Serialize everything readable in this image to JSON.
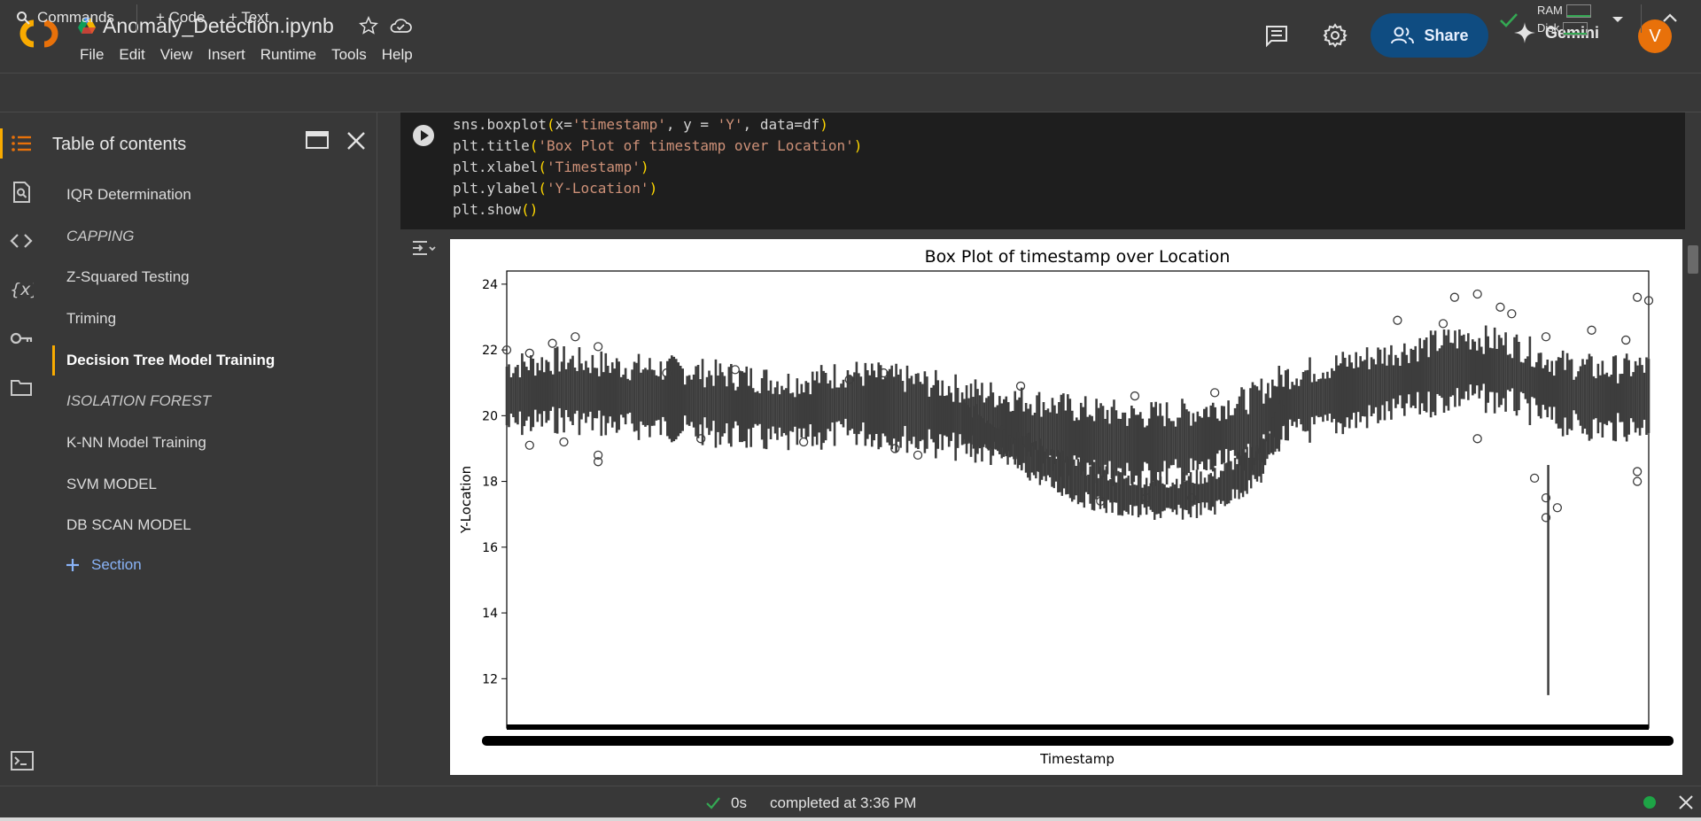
{
  "app": {
    "notebook_title": "Anomaly_Detection.ipynb",
    "menu": [
      "File",
      "Edit",
      "View",
      "Insert",
      "Runtime",
      "Tools",
      "Help"
    ],
    "share_label": "Share",
    "gemini_label": "Gemini",
    "avatar_letter": "V",
    "brand_color": "#f9ab00"
  },
  "toolbar": {
    "commands_label": "Commands",
    "code_label": "+ Code",
    "text_label": "+ Text",
    "ram_label": "RAM",
    "disk_label": "Disk"
  },
  "sidebar": {
    "title": "Table of contents",
    "items": [
      {
        "label": "IQR Determination",
        "style": "normal"
      },
      {
        "label": "CAPPING",
        "style": "italic"
      },
      {
        "label": "Z-Squared Testing",
        "style": "normal"
      },
      {
        "label": "Triming",
        "style": "normal"
      },
      {
        "label": "Decision Tree Model Training",
        "style": "active"
      },
      {
        "label": "ISOLATION FOREST",
        "style": "italic"
      },
      {
        "label": "K-NN Model Training",
        "style": "normal"
      },
      {
        "label": "SVM MODEL",
        "style": "normal"
      },
      {
        "label": "DB SCAN MODEL",
        "style": "normal"
      }
    ],
    "add_section_label": "Section"
  },
  "cell": {
    "code_lines": [
      [
        "sns.boxplot",
        "(",
        "x=",
        "'timestamp'",
        ", y = ",
        "'Y'",
        ", data=df",
        ")"
      ],
      [
        "plt.title",
        "(",
        "",
        "'Box Plot of timestamp over Location'",
        "",
        "",
        "",
        ")"
      ],
      [
        "plt.xlabel",
        "(",
        "",
        "'Timestamp'",
        "",
        "",
        "",
        ")"
      ],
      [
        "plt.ylabel",
        "(",
        "",
        "'Y-Location'",
        "",
        "",
        "",
        ")"
      ],
      [
        "plt.show",
        "(",
        "",
        "",
        "",
        "",
        "",
        ")"
      ]
    ]
  },
  "chart_data": {
    "type": "box",
    "title": "Box Plot of timestamp over Location",
    "xlabel": "Timestamp",
    "ylabel": "Y-Location",
    "ylim": [
      10.5,
      24.4
    ],
    "yticks": [
      12,
      14,
      16,
      18,
      20,
      22,
      24
    ],
    "series": [
      {
        "trend_points": [
          [
            0.0,
            20.6
          ],
          [
            0.05,
            20.8
          ],
          [
            0.1,
            20.6
          ],
          [
            0.15,
            20.5
          ],
          [
            0.2,
            20.3
          ],
          [
            0.25,
            20.1
          ],
          [
            0.3,
            20.4
          ],
          [
            0.35,
            20.2
          ],
          [
            0.4,
            19.9
          ],
          [
            0.45,
            19.6
          ],
          [
            0.5,
            19.3
          ],
          [
            0.55,
            19.1
          ],
          [
            0.6,
            19.2
          ],
          [
            0.65,
            19.6
          ],
          [
            0.68,
            20.3
          ],
          [
            0.72,
            20.6
          ],
          [
            0.76,
            20.9
          ],
          [
            0.8,
            21.2
          ],
          [
            0.84,
            21.5
          ],
          [
            0.88,
            21.3
          ],
          [
            0.92,
            20.7
          ],
          [
            0.96,
            20.5
          ],
          [
            1.0,
            20.6
          ]
        ],
        "lower_band": [
          [
            0.4,
            19.8
          ],
          [
            0.45,
            18.9
          ],
          [
            0.5,
            18.0
          ],
          [
            0.54,
            17.6
          ],
          [
            0.58,
            17.5
          ],
          [
            0.62,
            17.7
          ],
          [
            0.66,
            18.6
          ],
          [
            0.68,
            20.0
          ]
        ],
        "upper_outliers": [
          [
            0.0,
            22.0
          ],
          [
            0.02,
            21.9
          ],
          [
            0.04,
            22.2
          ],
          [
            0.06,
            22.4
          ],
          [
            0.08,
            22.1
          ],
          [
            0.14,
            21.3
          ],
          [
            0.2,
            21.4
          ],
          [
            0.3,
            21.1
          ],
          [
            0.33,
            21.3
          ],
          [
            0.45,
            20.9
          ],
          [
            0.55,
            20.6
          ],
          [
            0.62,
            20.7
          ],
          [
            0.78,
            22.9
          ],
          [
            0.82,
            22.8
          ],
          [
            0.83,
            23.6
          ],
          [
            0.85,
            23.7
          ],
          [
            0.87,
            23.3
          ],
          [
            0.88,
            23.1
          ],
          [
            0.91,
            22.4
          ],
          [
            0.95,
            22.6
          ],
          [
            0.98,
            22.3
          ],
          [
            0.99,
            23.6
          ],
          [
            1.0,
            23.5
          ]
        ],
        "lower_outliers": [
          [
            0.02,
            19.1
          ],
          [
            0.05,
            19.2
          ],
          [
            0.08,
            18.8
          ],
          [
            0.08,
            18.6
          ],
          [
            0.17,
            19.3
          ],
          [
            0.26,
            19.2
          ],
          [
            0.34,
            19.0
          ],
          [
            0.36,
            18.8
          ],
          [
            0.52,
            17.4
          ],
          [
            0.56,
            17.5
          ],
          [
            0.6,
            17.5
          ],
          [
            0.85,
            19.3
          ],
          [
            0.9,
            18.1
          ],
          [
            0.91,
            17.5
          ],
          [
            0.91,
            16.9
          ],
          [
            0.92,
            17.2
          ],
          [
            0.99,
            18.0
          ],
          [
            0.99,
            18.3
          ]
        ],
        "spike_min": 11.5,
        "spike_x": 0.912
      }
    ]
  },
  "status": {
    "elapsed": "0s",
    "completed": "completed at 3:36 PM"
  }
}
